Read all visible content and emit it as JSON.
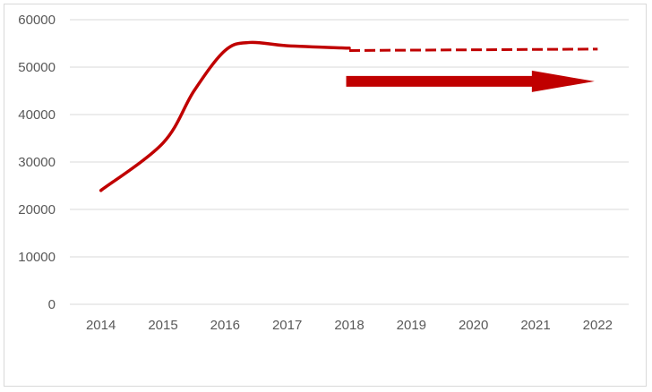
{
  "chart_data": {
    "type": "line",
    "title": "",
    "xlabel": "",
    "ylabel": "",
    "categories": [
      "2014",
      "2015",
      "2016",
      "2017",
      "2018",
      "2019",
      "2020",
      "2021",
      "2022"
    ],
    "ylim": [
      0,
      60000
    ],
    "yticks": [
      0,
      10000,
      20000,
      30000,
      40000,
      50000,
      60000
    ],
    "ytick_labels": [
      "0",
      "10000",
      "20000",
      "30000",
      "40000",
      "50000",
      "60000"
    ],
    "grid": true,
    "legend": "none",
    "series": [
      {
        "style": "solid",
        "color": "#c00000",
        "points": [
          {
            "x": 2014,
            "y": 24000
          },
          {
            "x": 2015,
            "y": 34000
          },
          {
            "x": 2015.5,
            "y": 45000
          },
          {
            "x": 2016,
            "y": 53500
          },
          {
            "x": 2016.4,
            "y": 55200
          },
          {
            "x": 2017,
            "y": 54500
          },
          {
            "x": 2018,
            "y": 54000
          }
        ]
      },
      {
        "style": "dashed",
        "color": "#c00000",
        "points": [
          {
            "x": 2018,
            "y": 53500
          },
          {
            "x": 2022,
            "y": 53800
          }
        ]
      }
    ],
    "annotation": {
      "type": "arrow",
      "color": "#c00000",
      "from": {
        "x": 2017.95,
        "y": 47000
      },
      "to": {
        "x": 2021.95,
        "y": 47000
      }
    }
  }
}
